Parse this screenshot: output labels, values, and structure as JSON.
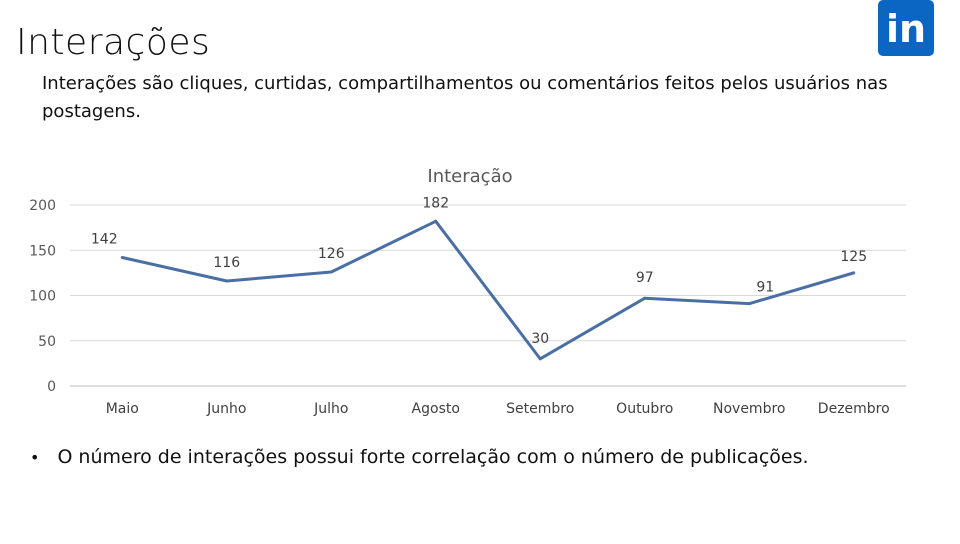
{
  "slide": {
    "title": "Interações",
    "subtitle": "Interações são cliques, curtidas, compartilhamentos ou comentários feitos pelos usuários nas postagens.",
    "bullet": "O número de interações possui forte correlação com o número de publicações."
  },
  "logo": {
    "icon": "linkedin-icon",
    "text": "in",
    "color": "#0a66c2"
  },
  "chart_data": {
    "type": "line",
    "title": "Interação",
    "categories": [
      "Maio",
      "Junho",
      "Julho",
      "Agosto",
      "Setembro",
      "Outubro",
      "Novembro",
      "Dezembro"
    ],
    "series": [
      {
        "values": [
          142,
          116,
          126,
          182,
          30,
          97,
          91,
          125
        ],
        "color": "#4a6fa5"
      }
    ],
    "yticks": [
      "0",
      "50",
      "100",
      "150",
      "200"
    ],
    "ylim": [
      0,
      200
    ],
    "grid": true,
    "data_labels": [
      "142",
      "116",
      "126",
      "182",
      "30",
      "97",
      "91",
      "125"
    ]
  }
}
